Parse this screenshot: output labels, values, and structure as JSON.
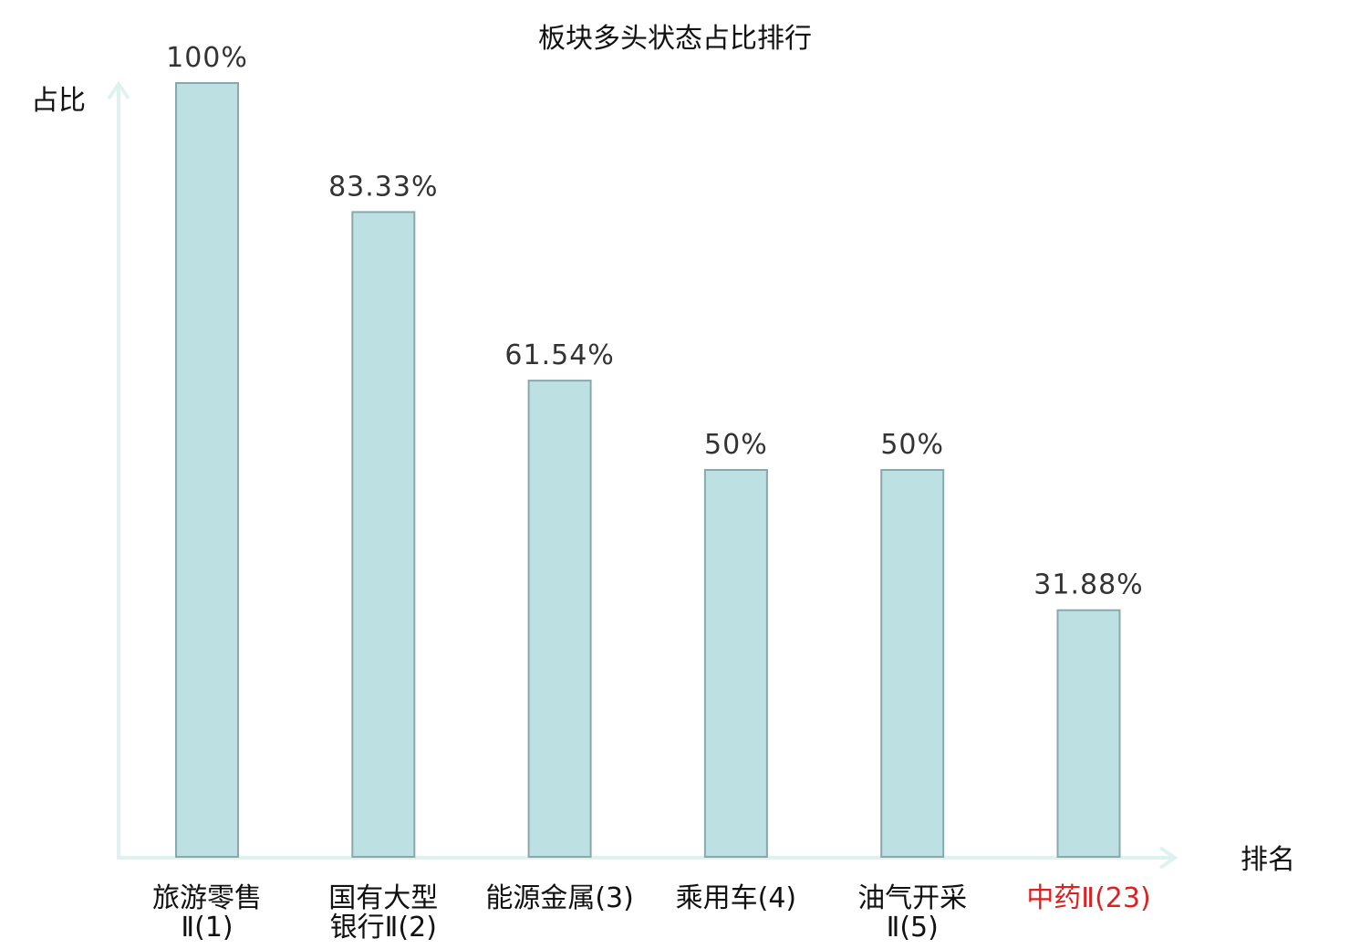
{
  "chart_data": {
    "type": "bar",
    "title": "板块多头状态占比排行",
    "ylabel": "占比",
    "xlabel": "排名",
    "categories": [
      [
        "旅游零售",
        "Ⅱ(1)"
      ],
      [
        "国有大型",
        "银行Ⅱ(2)"
      ],
      [
        "能源金属(3)"
      ],
      [
        "乘用车(4)"
      ],
      [
        "油气开采",
        "Ⅱ(5)"
      ],
      [
        "中药Ⅱ(23)"
      ]
    ],
    "values": [
      100,
      83.33,
      61.54,
      50,
      50,
      31.88
    ],
    "value_labels": [
      "100%",
      "83.33%",
      "61.54%",
      "50%",
      "50%",
      "31.88%"
    ],
    "highlight_index": 5,
    "ylim": [
      0,
      100
    ],
    "grid": false,
    "colors": {
      "bar_fill": "#bde0e3",
      "bar_stroke": "#8aa8ab",
      "axis": "#e0f2ef",
      "highlight_text": "#e02020"
    }
  }
}
